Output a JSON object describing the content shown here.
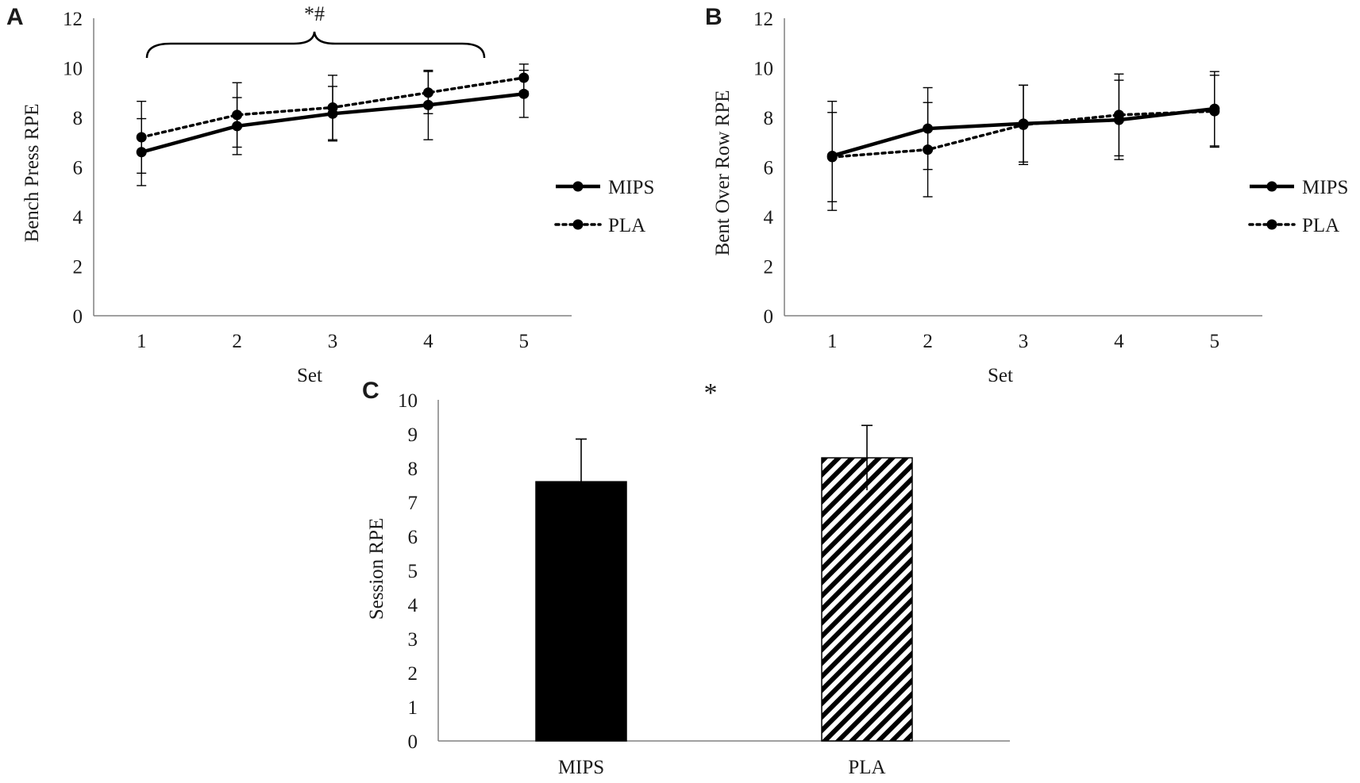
{
  "colors": {
    "ink": "#000000",
    "axis": "#808080",
    "text": "#1a1a1a"
  },
  "chart_data": [
    {
      "panel": "A",
      "type": "line",
      "xlabel": "Set",
      "ylabel": "Bench Press RPE",
      "ylim": [
        0,
        12
      ],
      "yticks": [
        "0",
        "2",
        "4",
        "6",
        "8",
        "10",
        "12"
      ],
      "categories": [
        "1",
        "2",
        "3",
        "4",
        "5"
      ],
      "annotation": "*#",
      "series": [
        {
          "name": "MIPS",
          "style": "solid",
          "values": [
            6.6,
            7.65,
            8.15,
            8.5,
            8.95
          ],
          "errors": [
            1.35,
            1.15,
            1.1,
            1.4,
            0.95
          ]
        },
        {
          "name": "PLA",
          "style": "dotted",
          "values": [
            7.2,
            8.1,
            8.4,
            9.0,
            9.6
          ],
          "errors": [
            1.45,
            1.3,
            1.3,
            0.85,
            0.55
          ]
        }
      ]
    },
    {
      "panel": "B",
      "type": "line",
      "xlabel": "Set",
      "ylabel": "Bent Over Row RPE",
      "ylim": [
        0,
        12
      ],
      "yticks": [
        "0",
        "2",
        "4",
        "6",
        "8",
        "10",
        "12"
      ],
      "categories": [
        "1",
        "2",
        "3",
        "4",
        "5"
      ],
      "series": [
        {
          "name": "MIPS",
          "style": "solid",
          "values": [
            6.45,
            7.55,
            7.75,
            7.9,
            8.35
          ],
          "errors": [
            2.2,
            1.65,
            1.55,
            1.6,
            1.5
          ]
        },
        {
          "name": "PLA",
          "style": "dotted",
          "values": [
            6.4,
            6.7,
            7.7,
            8.1,
            8.25
          ],
          "errors": [
            1.8,
            1.9,
            1.6,
            1.65,
            1.45
          ]
        }
      ]
    },
    {
      "panel": "C",
      "type": "bar",
      "xlabel": "",
      "ylabel": "Session RPE",
      "ylim": [
        0,
        10
      ],
      "yticks": [
        "0",
        "1",
        "2",
        "3",
        "4",
        "5",
        "6",
        "7",
        "8",
        "9",
        "10"
      ],
      "categories": [
        "MIPS",
        "PLA"
      ],
      "values": [
        7.6,
        8.3
      ],
      "errors": [
        1.25,
        0.95
      ],
      "fills": [
        "solid",
        "hatched"
      ],
      "annotation": "*"
    }
  ]
}
